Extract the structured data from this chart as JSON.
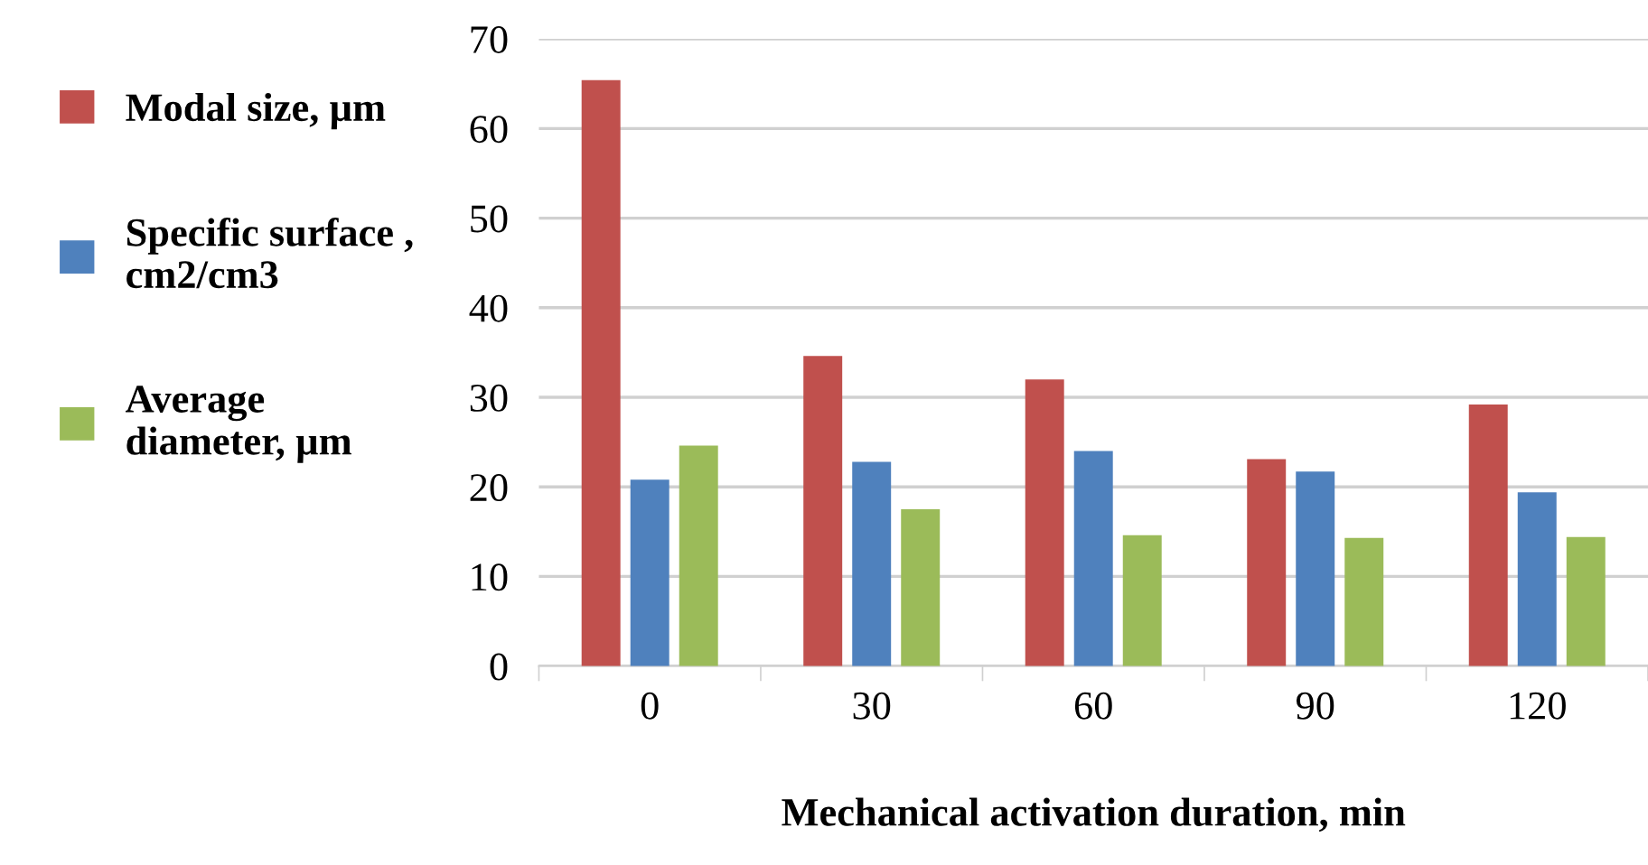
{
  "chart_data": {
    "type": "bar",
    "xlabel": "Mechanical activation duration, min",
    "categories": [
      "0",
      "30",
      "60",
      "90",
      "120"
    ],
    "series": [
      {
        "name": "Modal size, µm",
        "color": "#c0504d",
        "values": [
          65.4,
          34.6,
          32.0,
          23.1,
          29.2
        ]
      },
      {
        "name": "Specific surface ,\ncm2/cm3",
        "color": "#4f81bd",
        "values": [
          20.8,
          22.8,
          24.0,
          21.7,
          19.4
        ]
      },
      {
        "name": "Average\ndiameter, µm",
        "color": "#9bbb59",
        "values": [
          24.6,
          17.5,
          14.6,
          14.3,
          14.4
        ]
      }
    ],
    "ylim": [
      0,
      70
    ],
    "yticks": [
      0,
      10,
      20,
      30,
      40,
      50,
      60,
      70
    ],
    "grid": "y",
    "legend": "left"
  }
}
